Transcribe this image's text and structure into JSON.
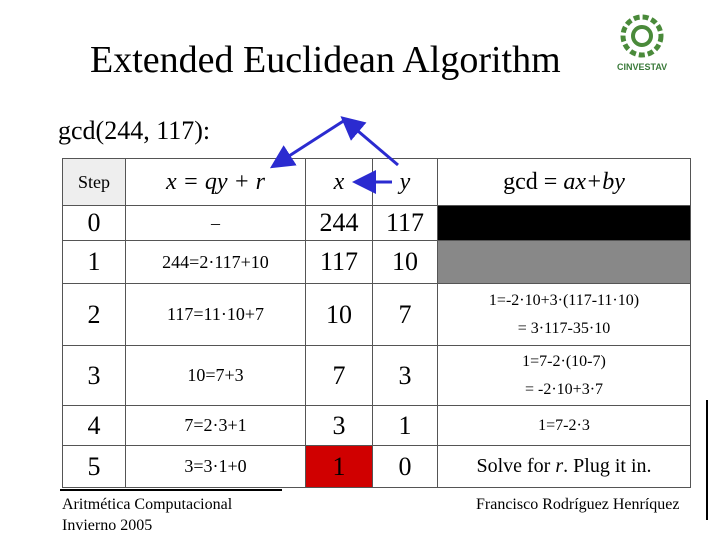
{
  "title": "Extended Euclidean Algorithm",
  "logo_text": "CINVESTAV",
  "subtitle": "gcd(244, 117):",
  "table": {
    "header": {
      "step": "Step",
      "formula": "x = qy + r",
      "x": "x",
      "y": "y",
      "gcd": [
        "gcd = ",
        "ax+by"
      ]
    },
    "rows": [
      {
        "step": "0",
        "formula": "–",
        "x": "244",
        "y": "117"
      },
      {
        "step": "1",
        "formula": "244=2·117+10",
        "x": "117",
        "y": "10"
      },
      {
        "step": "2",
        "formula": "117=11·10+7",
        "x": "10",
        "y": "7",
        "gcd": [
          "1=-2·10+3·(117-11·10)",
          "= 3·117-35·10"
        ]
      },
      {
        "step": "3",
        "formula": "10=7+3",
        "x": "7",
        "y": "3",
        "gcd": [
          "1=7-2·(10-7)",
          "= -2·10+3·7"
        ]
      },
      {
        "step": "4",
        "formula": "7=2·3+1",
        "x": "3",
        "y": "1",
        "gcd": [
          "1=7-2·3"
        ]
      },
      {
        "step": "5",
        "formula": "3=3·1+0",
        "x": "1",
        "y": "0",
        "gcd_parts": [
          "Solve for ",
          "r",
          ". Plug it in."
        ]
      }
    ]
  },
  "footer": {
    "left": [
      "Aritmética Computacional",
      "Invierno 2005"
    ],
    "right": "Francisco Rodríguez Henríquez"
  }
}
